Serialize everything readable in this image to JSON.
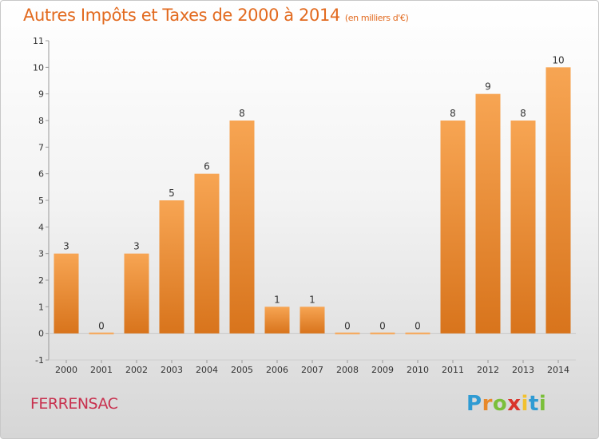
{
  "header": {
    "title": "Autres Impôts et Taxes de 2000 à 2014",
    "unit": "(en milliers d'€)"
  },
  "footer": {
    "commune": "FERRENSAC",
    "logo_letters": [
      "P",
      "r",
      "o",
      "x",
      "i",
      "t",
      "i"
    ],
    "logo_colors": [
      "#2f9bd3",
      "#e8892a",
      "#7bbf3a",
      "#d9342b",
      "#f2c12e",
      "#2f9bd3",
      "#7bbf3a"
    ]
  },
  "chart_data": {
    "type": "bar",
    "title": "Autres Impôts et Taxes de 2000 à 2014",
    "categories": [
      "2000",
      "2001",
      "2002",
      "2003",
      "2004",
      "2005",
      "2006",
      "2007",
      "2008",
      "2009",
      "2010",
      "2011",
      "2012",
      "2013",
      "2014"
    ],
    "values": [
      3,
      0,
      3,
      5,
      6,
      8,
      1,
      1,
      0,
      0,
      0,
      8,
      9,
      8,
      10
    ],
    "ylim": [
      -1,
      11
    ],
    "yticks": [
      -1,
      0,
      1,
      2,
      3,
      4,
      5,
      6,
      7,
      8,
      9,
      10,
      11
    ],
    "grid": false,
    "colors": {
      "bar_top": "#f7a553",
      "bar_bottom": "#d8741c",
      "axis": "#999999"
    }
  }
}
